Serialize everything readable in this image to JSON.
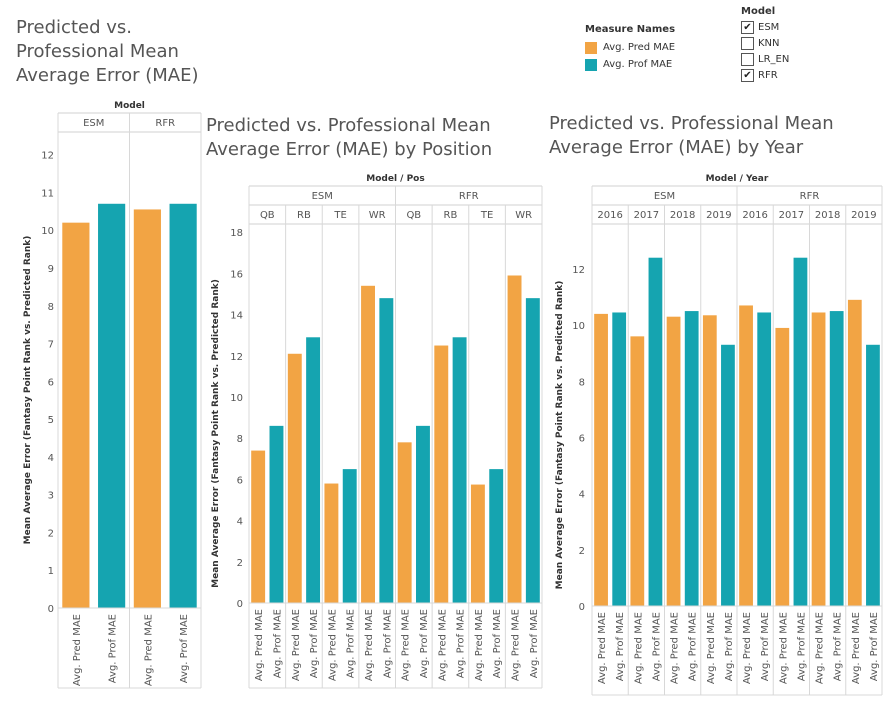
{
  "titles": {
    "main": "Predicted vs. Professional Mean Average Error (MAE)",
    "by_position": "Predicted vs. Professional Mean Average Error (MAE) by Position",
    "by_year": "Predicted vs. Professional Mean Average Error (MAE) by Year"
  },
  "legend": {
    "title": "Measure Names",
    "items": [
      {
        "label": "Avg. Pred MAE",
        "color": "#f2a444"
      },
      {
        "label": "Avg. Prof MAE",
        "color": "#15a4b0"
      }
    ]
  },
  "model_filter": {
    "title": "Model",
    "options": [
      {
        "label": "ESM",
        "checked": true
      },
      {
        "label": "KNN",
        "checked": false
      },
      {
        "label": "LR_EN",
        "checked": false
      },
      {
        "label": "RFR",
        "checked": true
      }
    ]
  },
  "chart_data": [
    {
      "type": "bar",
      "title": "Predicted vs. Professional Mean Average Error (MAE)",
      "header_label": "Model",
      "ylabel": "Mean Average Error (Fantasy Point Rank vs. Predicted Rank)",
      "ylim": [
        0,
        12.6
      ],
      "yticks": [
        0,
        1,
        2,
        3,
        4,
        5,
        6,
        7,
        8,
        9,
        10,
        11,
        12
      ],
      "grid": false,
      "groups": [
        {
          "labels": [
            "ESM"
          ],
          "bars": [
            {
              "measure": "Avg. Pred MAE",
              "value": 10.2
            },
            {
              "measure": "Avg. Prof MAE",
              "value": 10.7
            }
          ]
        },
        {
          "labels": [
            "RFR"
          ],
          "bars": [
            {
              "measure": "Avg. Pred MAE",
              "value": 10.55
            },
            {
              "measure": "Avg. Prof MAE",
              "value": 10.7
            }
          ]
        }
      ]
    },
    {
      "type": "bar",
      "title": "Predicted vs. Professional Mean Average Error (MAE) by Position",
      "header_label": "Model / Pos",
      "ylabel": "Mean Average Error (Fantasy Point Rank vs. Predicted Rank)",
      "ylim": [
        0,
        18.4
      ],
      "yticks": [
        0,
        2,
        4,
        6,
        8,
        10,
        12,
        14,
        16,
        18
      ],
      "grid": false,
      "outer_groups": [
        "ESM",
        "RFR"
      ],
      "groups": [
        {
          "labels": [
            "ESM",
            "QB"
          ],
          "bars": [
            {
              "measure": "Avg. Pred MAE",
              "value": 7.4
            },
            {
              "measure": "Avg. Prof MAE",
              "value": 8.6
            }
          ]
        },
        {
          "labels": [
            "ESM",
            "RB"
          ],
          "bars": [
            {
              "measure": "Avg. Pred MAE",
              "value": 12.1
            },
            {
              "measure": "Avg. Prof MAE",
              "value": 12.9
            }
          ]
        },
        {
          "labels": [
            "ESM",
            "TE"
          ],
          "bars": [
            {
              "measure": "Avg. Pred MAE",
              "value": 5.8
            },
            {
              "measure": "Avg. Prof MAE",
              "value": 6.5
            }
          ]
        },
        {
          "labels": [
            "ESM",
            "WR"
          ],
          "bars": [
            {
              "measure": "Avg. Pred MAE",
              "value": 15.4
            },
            {
              "measure": "Avg. Prof MAE",
              "value": 14.8
            }
          ]
        },
        {
          "labels": [
            "RFR",
            "QB"
          ],
          "bars": [
            {
              "measure": "Avg. Pred MAE",
              "value": 7.8
            },
            {
              "measure": "Avg. Prof MAE",
              "value": 8.6
            }
          ]
        },
        {
          "labels": [
            "RFR",
            "RB"
          ],
          "bars": [
            {
              "measure": "Avg. Pred MAE",
              "value": 12.5
            },
            {
              "measure": "Avg. Prof MAE",
              "value": 12.9
            }
          ]
        },
        {
          "labels": [
            "RFR",
            "TE"
          ],
          "bars": [
            {
              "measure": "Avg. Pred MAE",
              "value": 5.75
            },
            {
              "measure": "Avg. Prof MAE",
              "value": 6.5
            }
          ]
        },
        {
          "labels": [
            "RFR",
            "WR"
          ],
          "bars": [
            {
              "measure": "Avg. Pred MAE",
              "value": 15.9
            },
            {
              "measure": "Avg. Prof MAE",
              "value": 14.8
            }
          ]
        }
      ]
    },
    {
      "type": "bar",
      "title": "Predicted vs. Professional Mean Average Error (MAE) by Year",
      "header_label": "Model / Year",
      "ylabel": "Mean Average Error (Fantasy Point Rank vs. Predicted Rank)",
      "ylim": [
        0,
        13.6
      ],
      "yticks": [
        0,
        2,
        4,
        6,
        8,
        10,
        12
      ],
      "grid": false,
      "outer_groups": [
        "ESM",
        "RFR"
      ],
      "groups": [
        {
          "labels": [
            "ESM",
            "2016"
          ],
          "bars": [
            {
              "measure": "Avg. Pred MAE",
              "value": 10.4
            },
            {
              "measure": "Avg. Prof MAE",
              "value": 10.45
            }
          ]
        },
        {
          "labels": [
            "ESM",
            "2017"
          ],
          "bars": [
            {
              "measure": "Avg. Pred MAE",
              "value": 9.6
            },
            {
              "measure": "Avg. Prof MAE",
              "value": 12.4
            }
          ]
        },
        {
          "labels": [
            "ESM",
            "2018"
          ],
          "bars": [
            {
              "measure": "Avg. Pred MAE",
              "value": 10.3
            },
            {
              "measure": "Avg. Prof MAE",
              "value": 10.5
            }
          ]
        },
        {
          "labels": [
            "ESM",
            "2019"
          ],
          "bars": [
            {
              "measure": "Avg. Pred MAE",
              "value": 10.35
            },
            {
              "measure": "Avg. Prof MAE",
              "value": 9.3
            }
          ]
        },
        {
          "labels": [
            "RFR",
            "2016"
          ],
          "bars": [
            {
              "measure": "Avg. Pred MAE",
              "value": 10.7
            },
            {
              "measure": "Avg. Prof MAE",
              "value": 10.45
            }
          ]
        },
        {
          "labels": [
            "RFR",
            "2017"
          ],
          "bars": [
            {
              "measure": "Avg. Pred MAE",
              "value": 9.9
            },
            {
              "measure": "Avg. Prof MAE",
              "value": 12.4
            }
          ]
        },
        {
          "labels": [
            "RFR",
            "2018"
          ],
          "bars": [
            {
              "measure": "Avg. Pred MAE",
              "value": 10.45
            },
            {
              "measure": "Avg. Prof MAE",
              "value": 10.5
            }
          ]
        },
        {
          "labels": [
            "RFR",
            "2019"
          ],
          "bars": [
            {
              "measure": "Avg. Pred MAE",
              "value": 10.9
            },
            {
              "measure": "Avg. Prof MAE",
              "value": 9.3
            }
          ]
        }
      ]
    }
  ]
}
